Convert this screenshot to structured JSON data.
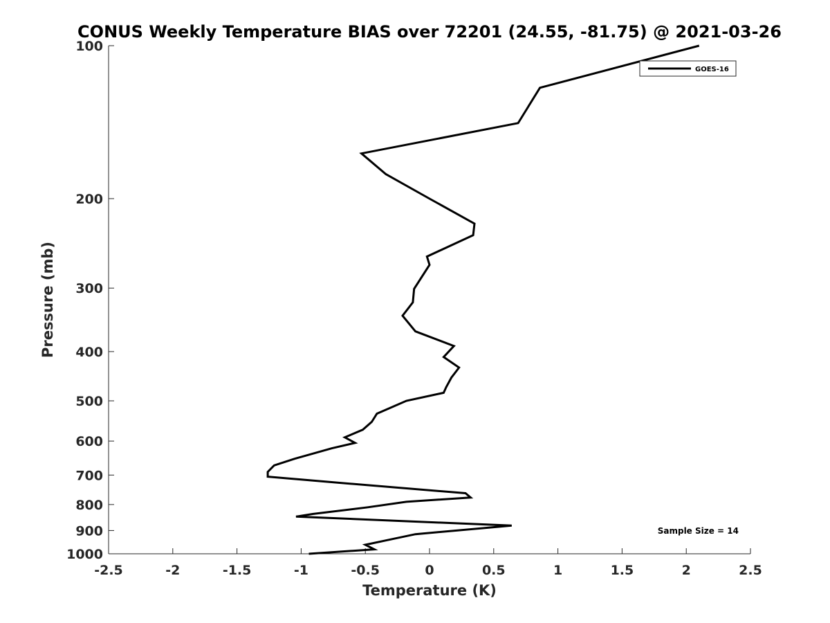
{
  "chart_data": {
    "type": "line",
    "title": "CONUS Weekly Temperature BIAS over 72201 (24.55, -81.75) @ 2021-03-26",
    "xlabel": "Temperature (K)",
    "ylabel": "Pressure (mb)",
    "xlim": [
      -2.5,
      2.5
    ],
    "ylim": [
      1000,
      100
    ],
    "yscale": "log",
    "y_reversed": true,
    "grid": false,
    "legend_position": "top-right",
    "x_ticks": [
      -2.5,
      -2,
      -1.5,
      -1,
      -0.5,
      0,
      0.5,
      1,
      1.5,
      2,
      2.5
    ],
    "x_tick_labels": [
      "-2.5",
      "-2",
      "-1.5",
      "-1",
      "-0.5",
      "0",
      "0.5",
      "1",
      "1.5",
      "2",
      "2.5"
    ],
    "y_ticks": [
      100,
      200,
      300,
      400,
      500,
      600,
      700,
      800,
      900,
      1000
    ],
    "y_tick_labels": [
      "100",
      "200",
      "300",
      "400",
      "500",
      "600",
      "700",
      "800",
      "900",
      "1000"
    ],
    "annotation": "Sample Size = 14",
    "series": [
      {
        "name": "GOES-16",
        "color": "#000000",
        "points": [
          {
            "x": 2.1,
            "y": 100
          },
          {
            "x": 0.86,
            "y": 121
          },
          {
            "x": 0.69,
            "y": 142
          },
          {
            "x": -0.53,
            "y": 163
          },
          {
            "x": -0.34,
            "y": 179
          },
          {
            "x": 0.0,
            "y": 200
          },
          {
            "x": 0.35,
            "y": 224
          },
          {
            "x": 0.34,
            "y": 236
          },
          {
            "x": -0.02,
            "y": 260
          },
          {
            "x": 0.0,
            "y": 270
          },
          {
            "x": -0.12,
            "y": 301
          },
          {
            "x": -0.13,
            "y": 320
          },
          {
            "x": -0.21,
            "y": 340
          },
          {
            "x": -0.11,
            "y": 365
          },
          {
            "x": 0.19,
            "y": 390
          },
          {
            "x": 0.11,
            "y": 410
          },
          {
            "x": 0.23,
            "y": 430
          },
          {
            "x": 0.17,
            "y": 450
          },
          {
            "x": 0.13,
            "y": 470
          },
          {
            "x": 0.11,
            "y": 482
          },
          {
            "x": -0.18,
            "y": 500
          },
          {
            "x": -0.41,
            "y": 530
          },
          {
            "x": -0.45,
            "y": 550
          },
          {
            "x": -0.52,
            "y": 570
          },
          {
            "x": -0.66,
            "y": 590
          },
          {
            "x": -0.58,
            "y": 605
          },
          {
            "x": -0.76,
            "y": 620
          },
          {
            "x": -1.05,
            "y": 650
          },
          {
            "x": -1.21,
            "y": 670
          },
          {
            "x": -1.26,
            "y": 690
          },
          {
            "x": -1.26,
            "y": 705
          },
          {
            "x": -0.7,
            "y": 725
          },
          {
            "x": 0.28,
            "y": 760
          },
          {
            "x": 0.32,
            "y": 775
          },
          {
            "x": -0.18,
            "y": 790
          },
          {
            "x": -0.48,
            "y": 810
          },
          {
            "x": -0.91,
            "y": 835
          },
          {
            "x": -1.04,
            "y": 845
          },
          {
            "x": 0.64,
            "y": 880
          },
          {
            "x": -0.11,
            "y": 915
          },
          {
            "x": -0.33,
            "y": 940
          },
          {
            "x": -0.5,
            "y": 960
          },
          {
            "x": -0.43,
            "y": 980
          },
          {
            "x": -0.94,
            "y": 1000
          }
        ]
      }
    ]
  }
}
